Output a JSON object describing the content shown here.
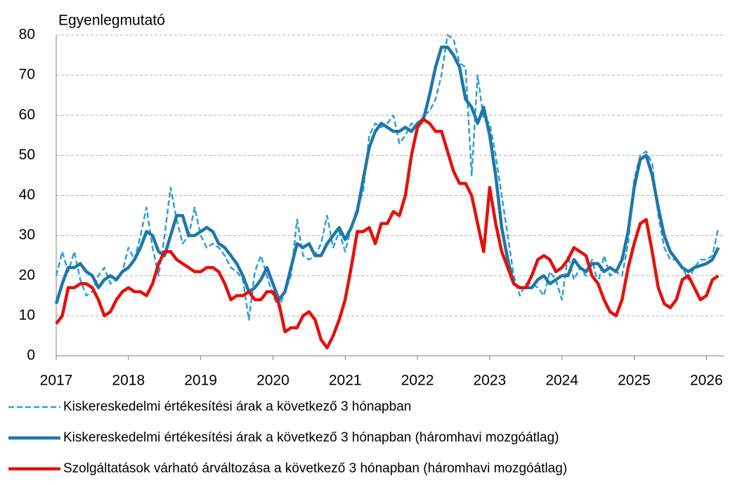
{
  "chart_data": {
    "type": "line",
    "title": "Egyenlegmutató",
    "xlim": [
      2017,
      2026.25
    ],
    "xticks": [
      2017,
      2018,
      2019,
      2020,
      2021,
      2022,
      2023,
      2024,
      2025,
      2026
    ],
    "ylim": [
      0,
      80
    ],
    "yticks": [
      0,
      10,
      20,
      30,
      40,
      50,
      60,
      70,
      80
    ],
    "grid": true,
    "x": [
      2017,
      2017.0833,
      2017.1667,
      2017.25,
      2017.3333,
      2017.4167,
      2017.5,
      2017.5833,
      2017.6667,
      2017.75,
      2017.8333,
      2017.9167,
      2018,
      2018.0833,
      2018.1667,
      2018.25,
      2018.3333,
      2018.4167,
      2018.5,
      2018.5833,
      2018.6667,
      2018.75,
      2018.8333,
      2018.9167,
      2019,
      2019.0833,
      2019.1667,
      2019.25,
      2019.3333,
      2019.4167,
      2019.5,
      2019.5833,
      2019.6667,
      2019.75,
      2019.8333,
      2019.9167,
      2020,
      2020.0833,
      2020.1667,
      2020.25,
      2020.3333,
      2020.4167,
      2020.5,
      2020.5833,
      2020.6667,
      2020.75,
      2020.8333,
      2020.9167,
      2021,
      2021.0833,
      2021.1667,
      2021.25,
      2021.3333,
      2021.4167,
      2021.5,
      2021.5833,
      2021.6667,
      2021.75,
      2021.8333,
      2021.9167,
      2022,
      2022.0833,
      2022.1667,
      2022.25,
      2022.3333,
      2022.4167,
      2022.5,
      2022.5833,
      2022.6667,
      2022.75,
      2022.8333,
      2022.9167,
      2023,
      2023.0833,
      2023.1667,
      2023.25,
      2023.3333,
      2023.4167,
      2023.5,
      2023.5833,
      2023.6667,
      2023.75,
      2023.8333,
      2023.9167,
      2024,
      2024.0833,
      2024.1667,
      2024.25,
      2024.3333,
      2024.4167,
      2024.5,
      2024.5833,
      2024.6667,
      2024.75,
      2024.8333,
      2024.9167,
      2025,
      2025.0833,
      2025.1667,
      2025.25,
      2025.3333,
      2025.4167,
      2025.5,
      2025.5833,
      2025.6667,
      2025.75,
      2025.8333,
      2025.9167,
      2026,
      2026.0833,
      2026.1667
    ],
    "series": [
      {
        "name": "Kiskereskedelmi értékesítési árak a következő 3 hónapban",
        "color": "#2e9fd8",
        "dashed": true,
        "values": [
          20,
          26,
          21,
          26,
          19,
          15,
          16,
          20,
          22,
          18,
          19,
          21,
          27,
          24,
          30,
          37,
          27,
          20,
          30,
          42,
          34,
          28,
          30,
          37,
          30,
          27,
          28,
          27,
          25,
          22,
          21,
          19,
          9,
          21,
          25,
          20,
          15,
          12,
          16,
          20,
          34,
          25,
          24,
          25,
          28,
          35,
          27,
          31,
          26,
          32,
          37,
          41,
          55,
          58,
          57,
          58,
          60,
          53,
          55,
          58,
          57,
          60,
          61,
          64,
          70,
          80,
          79,
          73,
          72,
          45,
          70,
          59,
          58,
          50,
          40,
          30,
          20,
          15,
          18,
          18,
          17,
          15,
          21,
          19,
          14,
          25,
          19,
          22,
          20,
          24,
          18,
          25,
          20,
          21,
          20,
          28,
          44,
          50,
          51,
          48,
          35,
          27,
          24,
          24,
          22,
          19,
          22,
          24,
          24,
          25,
          32
        ]
      },
      {
        "name": "Kiskereskedelmi értékesítési árak a következő 3 hónapban (háromhavi mozgóátlag)",
        "color": "#1f77a8",
        "values": [
          13,
          18,
          22,
          22,
          23,
          21,
          20,
          17,
          19,
          20,
          19,
          21,
          22,
          24,
          27,
          31,
          30,
          26,
          25,
          30,
          35,
          35,
          30,
          30,
          31,
          32,
          31,
          28,
          27,
          25,
          23,
          20,
          16,
          17,
          19,
          22,
          18,
          14,
          16,
          22,
          28,
          27,
          28,
          25,
          25,
          28,
          30,
          32,
          29,
          32,
          36,
          44,
          52,
          56,
          58,
          57,
          56,
          56,
          57,
          56,
          58,
          59,
          65,
          72,
          77,
          77,
          75,
          72,
          64,
          62,
          58,
          62,
          55,
          45,
          32,
          24,
          18,
          17,
          17,
          17,
          19,
          20,
          18,
          19,
          20,
          20,
          24,
          22,
          21,
          23,
          23,
          21,
          22,
          21,
          24,
          31,
          42,
          49,
          50,
          45,
          37,
          30,
          26,
          24,
          22,
          21,
          22,
          22.5,
          23,
          24,
          27
        ]
      },
      {
        "name": "Szolgáltatások várható árváltozása a következő 3 hónapban (háromhavi mozgóátlag)",
        "color": "#e3120b",
        "values": [
          8,
          10,
          17,
          17,
          18,
          18,
          17,
          14,
          10,
          11,
          14,
          16,
          17,
          16,
          16,
          15,
          18,
          23,
          26,
          26,
          24,
          23,
          22,
          21,
          21,
          22,
          22,
          21,
          18,
          14,
          15,
          15,
          16,
          14,
          14,
          16,
          16,
          13,
          6,
          7,
          7,
          10,
          11,
          9,
          4,
          2,
          5,
          9,
          14,
          22,
          31,
          31,
          32,
          28,
          33,
          33,
          36,
          35,
          40,
          50,
          57,
          59,
          58,
          56,
          56,
          51,
          46,
          43,
          43,
          40,
          33,
          26,
          42,
          33,
          26,
          22,
          18,
          17,
          17,
          20,
          24,
          25,
          24,
          21,
          22,
          24,
          27,
          26,
          25,
          20,
          18,
          14,
          11,
          10,
          14,
          22,
          28,
          33,
          34,
          26,
          17,
          13,
          12,
          14,
          19,
          20,
          17,
          14,
          15,
          19,
          20
        ]
      }
    ]
  }
}
